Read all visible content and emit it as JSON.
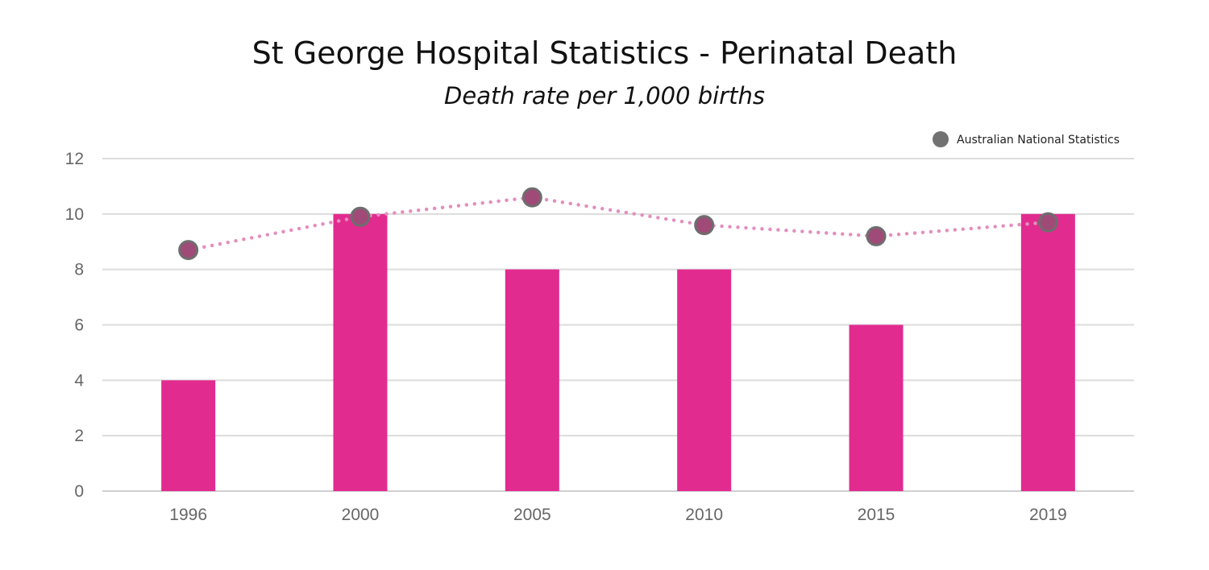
{
  "chart_data": {
    "type": "bar",
    "title": "St George Hospital Statistics - Perinatal Death",
    "subtitle": "Death rate per 1,000 births",
    "xlabel": "",
    "ylabel": "",
    "categories": [
      "1996",
      "2000",
      "2005",
      "2010",
      "2015",
      "2019"
    ],
    "ylim": [
      0,
      12
    ],
    "yticks": [
      0,
      2,
      4,
      6,
      8,
      10,
      12
    ],
    "grid": true,
    "legend_position": "top-right",
    "series": [
      {
        "type": "bar",
        "values": [
          4,
          10,
          8,
          8,
          6,
          10
        ],
        "color": "#e22b8f"
      },
      {
        "type": "line",
        "name": "Australian National Statistics",
        "values": [
          8.7,
          9.9,
          10.6,
          9.6,
          9.2,
          9.7
        ],
        "color": "#e38fbf",
        "marker_fill": "#a04a78",
        "marker_stroke": "#6e6e6e",
        "line_style": "dotted"
      }
    ]
  }
}
